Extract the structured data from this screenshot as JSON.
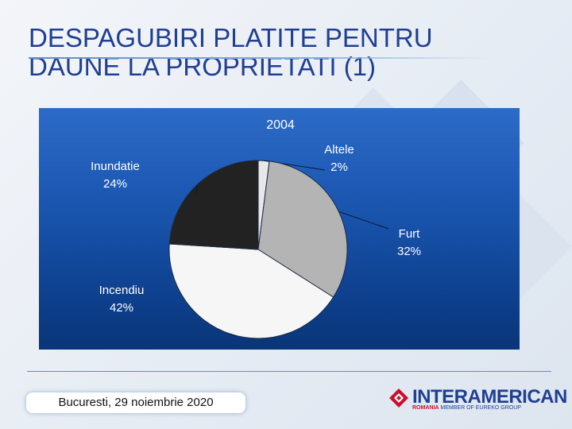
{
  "slide": {
    "title_line1": "DESPAGUBIRI PLATITE PENTRU",
    "title_line2": "DAUNE LA PROPRIETATI (1)",
    "footer_date": "Bucuresti, 29 noiembrie 2020"
  },
  "logo": {
    "name": "INTERAMERICAN",
    "sub_country": "ROMANIA",
    "sub_tagline": "MEMBER OF EUREKO GROUP",
    "color_brand": "#1f3f93",
    "color_accent": "#c8102e"
  },
  "chart_data": {
    "type": "pie",
    "title": "2004",
    "slices": [
      {
        "label": "Altele",
        "value_label": "2%",
        "value": 2,
        "color": "#e8e8e8"
      },
      {
        "label": "Furt",
        "value_label": "32%",
        "value": 32,
        "color": "#b4b4b4"
      },
      {
        "label": "Incendiu",
        "value_label": "42%",
        "value": 42,
        "color": "#f6f6f6"
      },
      {
        "label": "Inundatie",
        "value_label": "24%",
        "value": 24,
        "color": "#222222"
      }
    ]
  }
}
